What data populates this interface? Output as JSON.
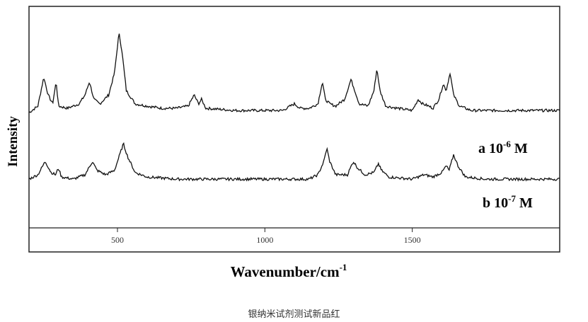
{
  "chart_data": {
    "type": "line",
    "xlabel_base": "Wavenumber/cm",
    "xlabel_sup": "-1",
    "ylabel": "Intensity",
    "xlim": [
      200,
      2000
    ],
    "xticks": [
      500,
      1000,
      1500
    ],
    "series": [
      {
        "name_prefix": "a 10",
        "name_exp": "-6",
        "name_suffix": " M",
        "baseline": 0.52,
        "points": [
          [
            200,
            0.52
          ],
          [
            230,
            0.55
          ],
          [
            250,
            0.68
          ],
          [
            265,
            0.6
          ],
          [
            280,
            0.56
          ],
          [
            292,
            0.66
          ],
          [
            300,
            0.55
          ],
          [
            330,
            0.54
          ],
          [
            370,
            0.56
          ],
          [
            390,
            0.6
          ],
          [
            405,
            0.66
          ],
          [
            420,
            0.58
          ],
          [
            440,
            0.56
          ],
          [
            470,
            0.6
          ],
          [
            490,
            0.7
          ],
          [
            505,
            0.88
          ],
          [
            515,
            0.8
          ],
          [
            530,
            0.62
          ],
          [
            560,
            0.56
          ],
          [
            600,
            0.55
          ],
          [
            650,
            0.54
          ],
          [
            700,
            0.54
          ],
          [
            740,
            0.55
          ],
          [
            760,
            0.6
          ],
          [
            775,
            0.56
          ],
          [
            785,
            0.58
          ],
          [
            800,
            0.54
          ],
          [
            900,
            0.53
          ],
          [
            1000,
            0.53
          ],
          [
            1060,
            0.53
          ],
          [
            1100,
            0.56
          ],
          [
            1120,
            0.54
          ],
          [
            1150,
            0.54
          ],
          [
            1180,
            0.56
          ],
          [
            1195,
            0.66
          ],
          [
            1205,
            0.58
          ],
          [
            1220,
            0.56
          ],
          [
            1240,
            0.55
          ],
          [
            1270,
            0.58
          ],
          [
            1292,
            0.67
          ],
          [
            1305,
            0.62
          ],
          [
            1320,
            0.56
          ],
          [
            1350,
            0.55
          ],
          [
            1370,
            0.62
          ],
          [
            1380,
            0.72
          ],
          [
            1390,
            0.62
          ],
          [
            1410,
            0.55
          ],
          [
            1450,
            0.54
          ],
          [
            1500,
            0.53
          ],
          [
            1520,
            0.58
          ],
          [
            1535,
            0.56
          ],
          [
            1555,
            0.55
          ],
          [
            1570,
            0.54
          ],
          [
            1590,
            0.58
          ],
          [
            1605,
            0.65
          ],
          [
            1615,
            0.62
          ],
          [
            1628,
            0.7
          ],
          [
            1640,
            0.6
          ],
          [
            1660,
            0.55
          ],
          [
            1700,
            0.53
          ],
          [
            1800,
            0.53
          ],
          [
            1900,
            0.53
          ],
          [
            2000,
            0.53
          ]
        ]
      },
      {
        "name_prefix": "b 10",
        "name_exp": "-7",
        "name_suffix": " M",
        "baseline": 0.22,
        "points": [
          [
            200,
            0.22
          ],
          [
            230,
            0.24
          ],
          [
            255,
            0.3
          ],
          [
            275,
            0.25
          ],
          [
            290,
            0.24
          ],
          [
            300,
            0.27
          ],
          [
            310,
            0.23
          ],
          [
            350,
            0.22
          ],
          [
            390,
            0.24
          ],
          [
            415,
            0.3
          ],
          [
            430,
            0.26
          ],
          [
            460,
            0.24
          ],
          [
            490,
            0.26
          ],
          [
            505,
            0.32
          ],
          [
            520,
            0.38
          ],
          [
            535,
            0.32
          ],
          [
            560,
            0.25
          ],
          [
            600,
            0.23
          ],
          [
            700,
            0.22
          ],
          [
            800,
            0.22
          ],
          [
            900,
            0.22
          ],
          [
            1000,
            0.22
          ],
          [
            1100,
            0.22
          ],
          [
            1150,
            0.22
          ],
          [
            1180,
            0.24
          ],
          [
            1200,
            0.3
          ],
          [
            1210,
            0.36
          ],
          [
            1220,
            0.3
          ],
          [
            1240,
            0.24
          ],
          [
            1280,
            0.24
          ],
          [
            1300,
            0.3
          ],
          [
            1315,
            0.27
          ],
          [
            1340,
            0.24
          ],
          [
            1370,
            0.25
          ],
          [
            1385,
            0.29
          ],
          [
            1395,
            0.26
          ],
          [
            1420,
            0.23
          ],
          [
            1500,
            0.22
          ],
          [
            1540,
            0.24
          ],
          [
            1570,
            0.23
          ],
          [
            1600,
            0.25
          ],
          [
            1615,
            0.28
          ],
          [
            1625,
            0.26
          ],
          [
            1640,
            0.33
          ],
          [
            1655,
            0.28
          ],
          [
            1680,
            0.23
          ],
          [
            1750,
            0.22
          ],
          [
            1850,
            0.22
          ],
          [
            1950,
            0.22
          ],
          [
            2000,
            0.22
          ]
        ]
      }
    ]
  },
  "caption": "银纳米试剂测试新品红"
}
